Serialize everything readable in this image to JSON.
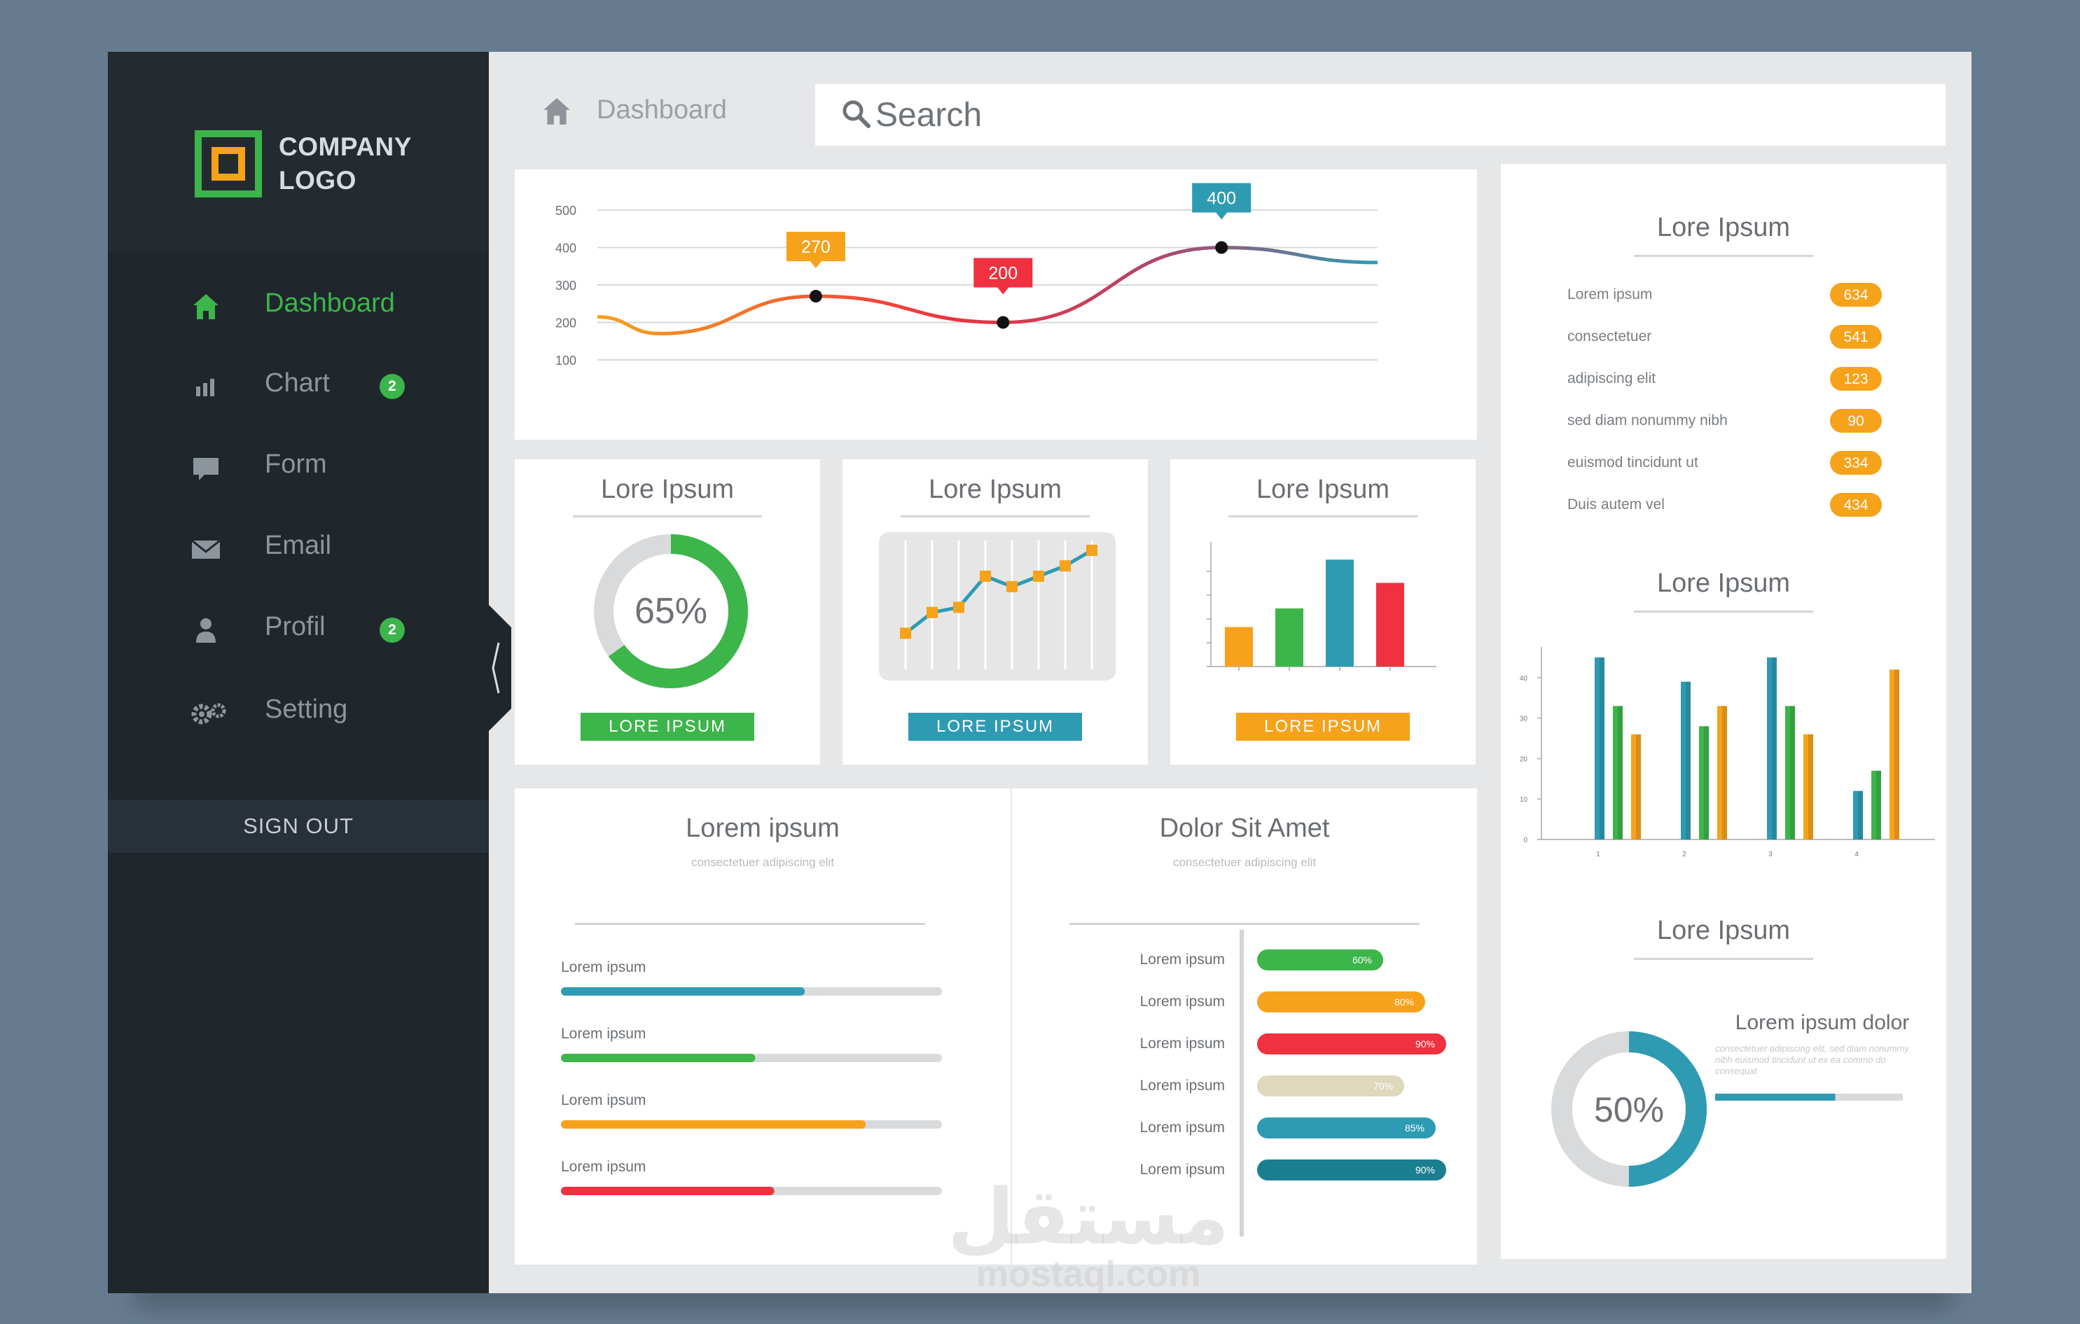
{
  "logo": {
    "line1": "COMPANY",
    "line2": "LOGO"
  },
  "nav": [
    {
      "label": "Dashboard",
      "icon": "home-icon",
      "active": true
    },
    {
      "label": "Chart",
      "icon": "bar-chart-icon",
      "badge": "2"
    },
    {
      "label": "Form",
      "icon": "chat-bubble-icon"
    },
    {
      "label": "Email",
      "icon": "envelope-icon"
    },
    {
      "label": "Profil",
      "icon": "user-icon",
      "badge": "2"
    },
    {
      "label": "Setting",
      "icon": "gears-icon"
    }
  ],
  "sign_out": "SIGN OUT",
  "breadcrumb": "Dashboard",
  "search": {
    "placeholder": "Search"
  },
  "colors": {
    "green": "#3cb54a",
    "orange": "#f6a21b",
    "blue": "#2e9bb3",
    "red": "#f0313f",
    "sidebar": "#1f262c"
  },
  "line_chart": {
    "type": "line",
    "yticks": [
      "500",
      "400",
      "300",
      "200",
      "100"
    ],
    "ylim": [
      100,
      500
    ],
    "points": [
      {
        "x": 0,
        "y": 215
      },
      {
        "x": 0.08,
        "y": 170
      },
      {
        "x": 0.28,
        "y": 270
      },
      {
        "x": 0.52,
        "y": 200
      },
      {
        "x": 0.8,
        "y": 400
      },
      {
        "x": 1,
        "y": 360
      }
    ],
    "callouts": [
      {
        "label": "270",
        "y": 270,
        "color": "#f6a21b"
      },
      {
        "label": "200",
        "y": 200,
        "color": "#f0313f"
      },
      {
        "label": "400",
        "y": 400,
        "color": "#2e9bb3"
      }
    ]
  },
  "mini_cards": [
    {
      "title": "Lore Ipsum",
      "button": "LORE IPSUM",
      "percent": "65%",
      "value": 0.65,
      "button_color": "#3cb54a"
    },
    {
      "title": "Lore Ipsum",
      "button": "LORE IPSUM",
      "button_color": "#2e9bb3",
      "line_values": [
        2,
        4,
        4.5,
        7.5,
        6.5,
        7.5,
        8.5,
        10
      ]
    },
    {
      "title": "Lore Ipsum",
      "button": "LORE IPSUM",
      "button_color": "#f6a21b",
      "bar_values": [
        17,
        25,
        46,
        36
      ],
      "bar_colors": [
        "#f6a21b",
        "#3cb54a",
        "#2e9bb3",
        "#f0313f"
      ]
    }
  ],
  "progress_card": {
    "title": "Lorem ipsum",
    "subtitle": "consectetuer adipiscing elit",
    "items": [
      {
        "label": "Lorem ipsum",
        "value": 0.64,
        "color": "#2e9bb3"
      },
      {
        "label": "Lorem ipsum",
        "value": 0.51,
        "color": "#3cb54a"
      },
      {
        "label": "Lorem ipsum",
        "value": 0.8,
        "color": "#f6a21b"
      },
      {
        "label": "Lorem ipsum",
        "value": 0.56,
        "color": "#f0313f"
      }
    ]
  },
  "hbar_card": {
    "title": "Dolor Sit Amet",
    "subtitle": "consectetuer adipiscing elit",
    "items": [
      {
        "label": "Lorem ipsum",
        "pct": "60%",
        "value": 0.6,
        "color": "#3cb54a"
      },
      {
        "label": "Lorem ipsum",
        "pct": "80%",
        "value": 0.8,
        "color": "#f6a21b"
      },
      {
        "label": "Lorem ipsum",
        "pct": "90%",
        "value": 0.9,
        "color": "#f0313f"
      },
      {
        "label": "Lorem ipsum",
        "pct": "70%",
        "value": 0.7,
        "color": "#ded8bc"
      },
      {
        "label": "Lorem ipsum",
        "pct": "85%",
        "value": 0.85,
        "color": "#2e9bb3"
      },
      {
        "label": "Lorem ipsum",
        "pct": "90%",
        "value": 0.9,
        "color": "#1a7f90"
      }
    ]
  },
  "right_panel": {
    "list_title": "Lore Ipsum",
    "list": [
      {
        "label": "Lorem ipsum",
        "value": "634"
      },
      {
        "label": "consectetuer",
        "value": "541"
      },
      {
        "label": "adipiscing elit",
        "value": "123"
      },
      {
        "label": "sed diam nonummy nibh",
        "value": "90"
      },
      {
        "label": "euismod tincidunt ut",
        "value": "334"
      },
      {
        "label": "Duis autem vel",
        "value": "434"
      }
    ],
    "bars_title": "Lore Ipsum",
    "bars": {
      "type": "bar",
      "yticks": [
        "40",
        "30",
        "20",
        "10",
        "0"
      ],
      "xticks": [
        "1",
        "2",
        "3",
        "4"
      ],
      "ylim": [
        0,
        45
      ],
      "series": [
        {
          "color": "#2e9bb3",
          "values": [
            45,
            39,
            45,
            12
          ]
        },
        {
          "color": "#3cb54a",
          "values": [
            33,
            28,
            33,
            17
          ]
        },
        {
          "color": "#f6a21b",
          "values": [
            26,
            33,
            26,
            42
          ]
        }
      ]
    },
    "donut_title": "Lore Ipsum",
    "donut_percent": "50%",
    "donut_value": 0.5,
    "donut_heading": "Lorem ipsum dolor",
    "donut_text": "consectetuer adipiscing elit, sed diam nonummy nibh euismod tincidunt ut ex ea commo do consequat",
    "donut_bar_value": 0.64
  },
  "watermark": {
    "arabic": "مستقل",
    "latin": "mostaql.com"
  }
}
